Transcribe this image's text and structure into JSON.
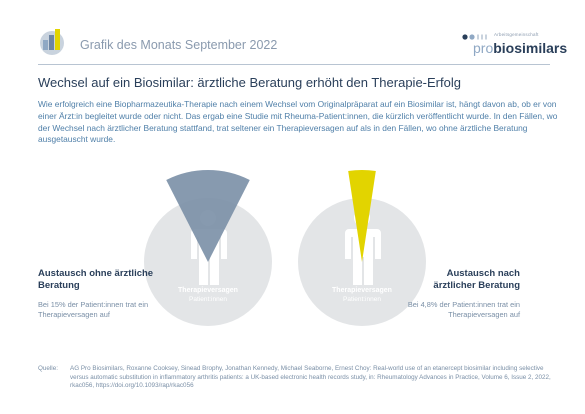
{
  "header": {
    "title": "Grafik des Monats September 2022",
    "brand_small": "Arbeitsgemeinschaft",
    "brand_pro": "pro",
    "brand_bio": "biosimilars"
  },
  "main": {
    "title": "Wechsel auf ein Biosimilar: ärztliche Beratung erhöht den Therapie-Erfolg",
    "intro": "Wie erfolgreich eine Biopharmazeutika-Therapie nach einem Wechsel vom Originalpräparat auf ein Biosimilar ist, hängt davon ab, ob er von einer Ärzt:in begleitet wurde oder nicht. Das ergab eine Studie mit Rheuma-Patient:innen, die kürzlich veröffentlicht wurde. In den Fällen, wo der Wechsel nach ärztlicher Beratung stattfand, trat seltener ein Therapieversagen auf als in den Fällen, wo ohne ärztliche Beratung ausgetauscht wurde."
  },
  "colors": {
    "accent_blue": "#7a8fa6",
    "accent_yellow": "#e2d400",
    "circle_gray": "#e3e5e7",
    "title_navy": "#2a3f5a",
    "text_blue": "#4f7fa8"
  },
  "chart_data": [
    {
      "type": "pie",
      "title": "Austausch ohne ärztliche Beratung",
      "subtitle": "Bei 15% der Patient:innen trat ein Therapieversagen auf",
      "value_percent": 15,
      "figure_label": "Therapieversagen",
      "figure_sublabel": "Patient:innen",
      "color": "#7a8fa6"
    },
    {
      "type": "pie",
      "title": "Austausch nach ärztlicher Beratung",
      "subtitle": "Bei 4,8% der Patient:innen trat ein Therapieversagen auf",
      "value_percent": 4.8,
      "figure_label": "Therapieversagen",
      "figure_sublabel": "Patient:innen",
      "color": "#e2d400"
    }
  ],
  "source": {
    "label": "Quelle:",
    "text": "AG Pro Biosimilars, Roxanne Cooksey, Sinead Brophy, Jonathan Kennedy, Michael Seaborne, Ernest Choy: Real-world use of an etanercept biosimilar including selective versus automatic substitution in inflammatory arthritis patients: a UK-based electronic health records study, in: Rheumatology Advances in Practice, Volume 6, Issue 2, 2022, rkac056, https://doi.org/10.1093/rap/rkac056"
  }
}
